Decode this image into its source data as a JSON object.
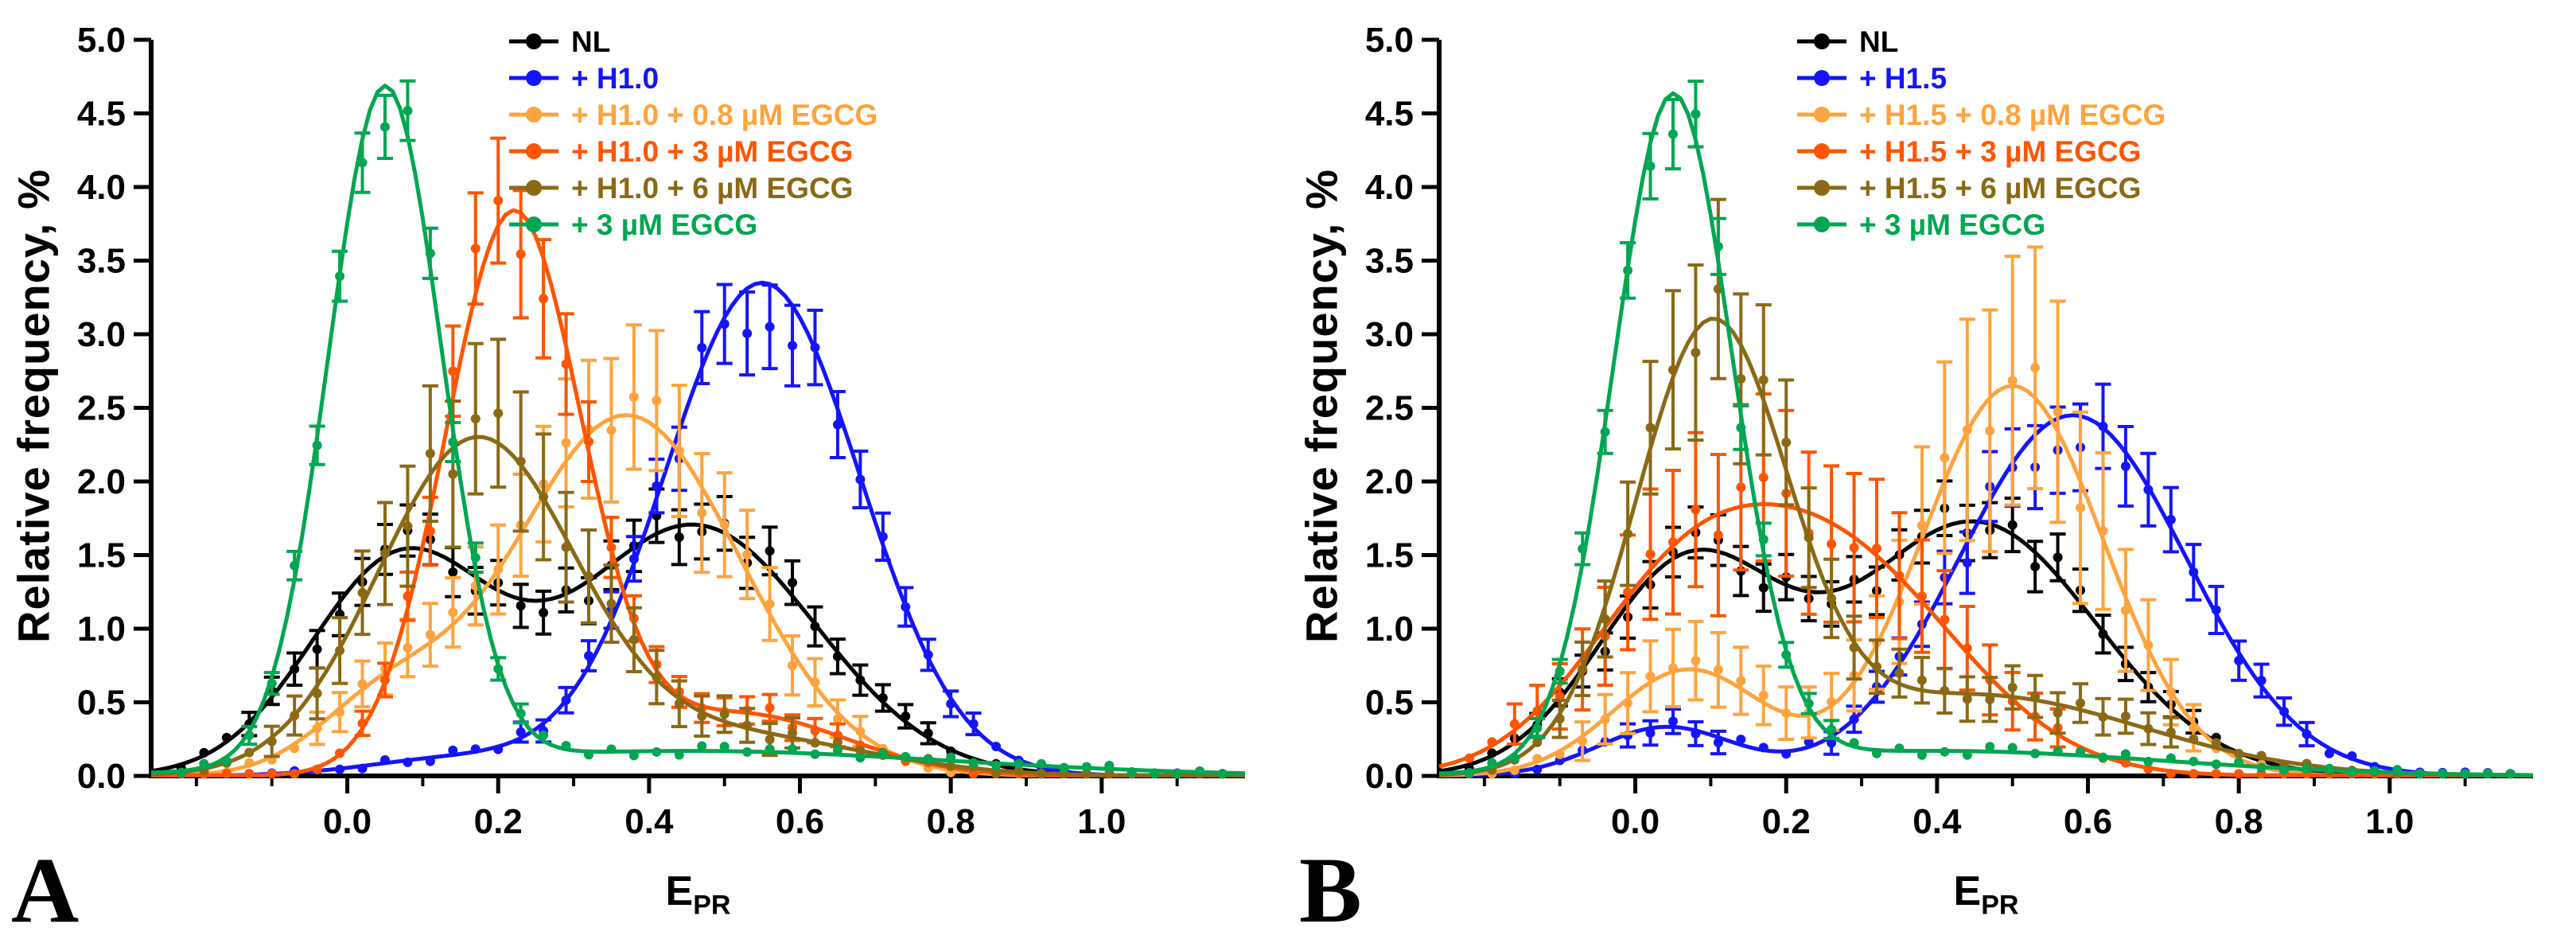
{
  "figure": {
    "panels": [
      {
        "letter": "A",
        "y_axis_label": "Relative frequency, %",
        "x_label_base": "E",
        "x_label_sub": "PR"
      },
      {
        "letter": "B",
        "y_axis_label": "Relative frequency, %",
        "x_label_base": "E",
        "x_label_sub": "PR"
      }
    ]
  },
  "chart_data": [
    {
      "type": "scatter",
      "panel": "A",
      "title": "",
      "xlabel": "E_PR",
      "ylabel": "Relative frequency, %",
      "xlim": [
        -0.26,
        1.19
      ],
      "ylim": [
        0,
        5.0
      ],
      "x_major_ticks": [
        0.0,
        0.2,
        0.4,
        0.6,
        0.8,
        1.0
      ],
      "x_minor_step": 0.1,
      "y_ticks": [
        0.0,
        0.5,
        1.0,
        1.5,
        2.0,
        2.5,
        3.0,
        3.5,
        4.0,
        4.5,
        5.0
      ],
      "grid": false,
      "legend_position": "top-center-right",
      "points_dx": 0.03,
      "points_range": [
        -0.22,
        1.16
      ],
      "series": [
        {
          "name": "NL",
          "color": "#000000",
          "err_base": 0.05,
          "err_scale": 0.08,
          "peaks": [
            {
              "x": 0.07,
              "y": 1.5
            },
            {
              "x": 0.46,
              "y": 1.75
            }
          ],
          "components": [
            {
              "amp": 1.45,
              "mu": 0.07,
              "sigma": 0.12
            },
            {
              "amp": 1.7,
              "mu": 0.46,
              "sigma": 0.16
            }
          ]
        },
        {
          "name": "+ H1.0",
          "color": "#1414FF",
          "err_base": 0.05,
          "err_scale": 0.07,
          "peaks": [
            {
              "x": 0.55,
              "y": 3.35
            }
          ],
          "components": [
            {
              "amp": 3.35,
              "mu": 0.55,
              "sigma": 0.13
            },
            {
              "amp": 0.12,
              "mu": 0.15,
              "sigma": 0.12
            }
          ]
        },
        {
          "name": "+ H1.0 + 0.8 µM EGCG",
          "color": "#FFA33E",
          "err_base": 0.05,
          "err_scale": 0.18,
          "peaks": [
            {
              "x": 0.37,
              "y": 2.5
            }
          ],
          "components": [
            {
              "amp": 2.45,
              "mu": 0.37,
              "sigma": 0.15
            },
            {
              "amp": 0.45,
              "mu": 0.05,
              "sigma": 0.09
            }
          ]
        },
        {
          "name": "+ H1.0 + 3 µM EGCG",
          "color": "#FF5500",
          "err_base": 0.05,
          "err_scale": 0.1,
          "peaks": [
            {
              "x": 0.22,
              "y": 3.85
            }
          ],
          "components": [
            {
              "amp": 3.8,
              "mu": 0.22,
              "sigma": 0.09
            },
            {
              "amp": 0.42,
              "mu": 0.52,
              "sigma": 0.14
            }
          ]
        },
        {
          "name": "+ H1.0 + 6 µM EGCG",
          "color": "#8B6914",
          "err_base": 0.05,
          "err_scale": 0.2,
          "peaks": [
            {
              "x": 0.17,
              "y": 2.3
            }
          ],
          "components": [
            {
              "amp": 2.25,
              "mu": 0.17,
              "sigma": 0.13
            },
            {
              "amp": 0.28,
              "mu": 0.5,
              "sigma": 0.18
            }
          ]
        },
        {
          "name": "+ 3 µM EGCG",
          "color": "#00A651",
          "err_base": 0.05,
          "err_scale": 0.035,
          "peaks": [
            {
              "x": 0.05,
              "y": 4.6
            }
          ],
          "components": [
            {
              "amp": 4.6,
              "mu": 0.05,
              "sigma": 0.075
            },
            {
              "amp": 0.17,
              "mu": 0.45,
              "sigma": 0.35
            }
          ]
        }
      ]
    },
    {
      "type": "scatter",
      "panel": "B",
      "title": "",
      "xlabel": "E_PR",
      "ylabel": "Relative frequency, %",
      "xlim": [
        -0.26,
        1.19
      ],
      "ylim": [
        0,
        5.0
      ],
      "x_major_ticks": [
        0.0,
        0.2,
        0.4,
        0.6,
        0.8,
        1.0
      ],
      "x_minor_step": 0.1,
      "y_ticks": [
        0.0,
        0.5,
        1.0,
        1.5,
        2.0,
        2.5,
        3.0,
        3.5,
        4.0,
        4.5,
        5.0
      ],
      "grid": false,
      "legend_position": "top-center-right",
      "points_dx": 0.03,
      "points_range": [
        -0.22,
        1.16
      ],
      "series": [
        {
          "name": "NL",
          "color": "#000000",
          "err_base": 0.05,
          "err_scale": 0.08,
          "peaks": [
            {
              "x": 0.07,
              "y": 1.5
            },
            {
              "x": 0.45,
              "y": 1.75
            }
          ],
          "components": [
            {
              "amp": 1.42,
              "mu": 0.07,
              "sigma": 0.12
            },
            {
              "amp": 1.72,
              "mu": 0.45,
              "sigma": 0.16
            }
          ]
        },
        {
          "name": "+ H1.5",
          "color": "#1414FF",
          "err_base": 0.05,
          "err_scale": 0.1,
          "peaks": [
            {
              "x": 0.58,
              "y": 2.45
            },
            {
              "x": 0.04,
              "y": 0.35
            }
          ],
          "components": [
            {
              "amp": 2.45,
              "mu": 0.58,
              "sigma": 0.15
            },
            {
              "amp": 0.33,
              "mu": 0.04,
              "sigma": 0.09
            }
          ]
        },
        {
          "name": "+ H1.5 + 0.8 µM EGCG",
          "color": "#FFA33E",
          "err_base": 0.05,
          "err_scale": 0.3,
          "peaks": [
            {
              "x": 0.5,
              "y": 2.7
            },
            {
              "x": 0.07,
              "y": 0.75
            }
          ],
          "components": [
            {
              "amp": 2.65,
              "mu": 0.5,
              "sigma": 0.12
            },
            {
              "amp": 0.72,
              "mu": 0.07,
              "sigma": 0.1
            }
          ]
        },
        {
          "name": "+ H1.5 + 3 µM EGCG",
          "color": "#FF5500",
          "err_base": 0.05,
          "err_scale": 0.28,
          "peaks": [
            {
              "x": 0.2,
              "y": 1.6
            }
          ],
          "components": [
            {
              "amp": 1.0,
              "mu": 0.05,
              "sigma": 0.13
            },
            {
              "amp": 1.45,
              "mu": 0.27,
              "sigma": 0.16
            }
          ]
        },
        {
          "name": "+ H1.5 + 6 µM EGCG",
          "color": "#8B6914",
          "err_base": 0.05,
          "err_scale": 0.18,
          "peaks": [
            {
              "x": 0.1,
              "y": 3.0
            }
          ],
          "components": [
            {
              "amp": 2.95,
              "mu": 0.1,
              "sigma": 0.1
            },
            {
              "amp": 0.55,
              "mu": 0.45,
              "sigma": 0.22
            }
          ]
        },
        {
          "name": "+ 3 µM EGCG",
          "color": "#00A651",
          "err_base": 0.05,
          "err_scale": 0.04,
          "peaks": [
            {
              "x": 0.05,
              "y": 4.6
            }
          ],
          "components": [
            {
              "amp": 4.55,
              "mu": 0.05,
              "sigma": 0.078
            },
            {
              "amp": 0.17,
              "mu": 0.4,
              "sigma": 0.3
            }
          ]
        }
      ]
    }
  ]
}
